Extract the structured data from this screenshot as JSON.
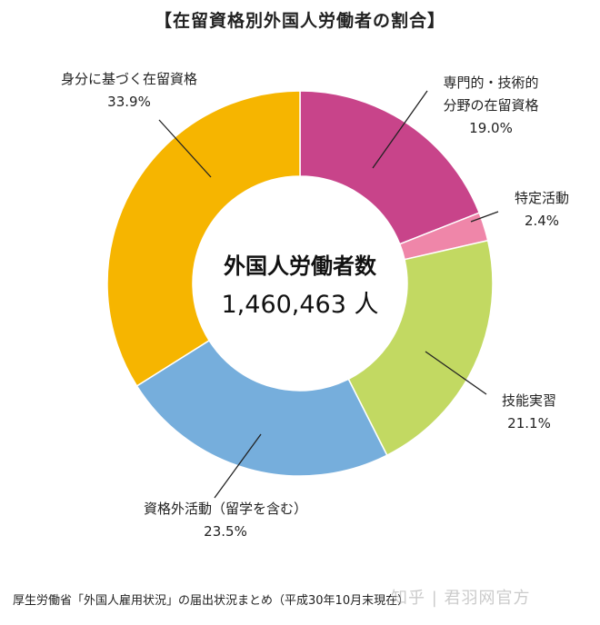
{
  "title": "【在留資格別外国人労働者の割合】",
  "center": {
    "line1": "外国人労働者数",
    "line2": "1,460,463 人"
  },
  "source": "厚生労働省「外国人雇用状況」の届出状況まとめ（平成30年10月末現在）",
  "watermark": "知乎 | 君羽网官方",
  "chart_data": {
    "type": "pie",
    "donut": true,
    "title": "【在留資格別外国人労働者の割合】",
    "slices": [
      {
        "label_lines": [
          "専門的・技術的",
          "分野の在留資格"
        ],
        "value": 19.0,
        "percent": "19.0%",
        "color": "#C8448A"
      },
      {
        "label_lines": [
          "特定活動"
        ],
        "value": 2.4,
        "percent": "2.4%",
        "color": "#EF86A9"
      },
      {
        "label_lines": [
          "技能実習"
        ],
        "value": 21.1,
        "percent": "21.1%",
        "color": "#C2D962"
      },
      {
        "label_lines": [
          "資格外活動（留学を含む）"
        ],
        "value": 23.5,
        "percent": "23.5%",
        "color": "#76AEDC"
      },
      {
        "label_lines": [
          "身分に基づく在留資格"
        ],
        "value": 33.9,
        "percent": "33.9%",
        "color": "#F6B500"
      }
    ]
  }
}
